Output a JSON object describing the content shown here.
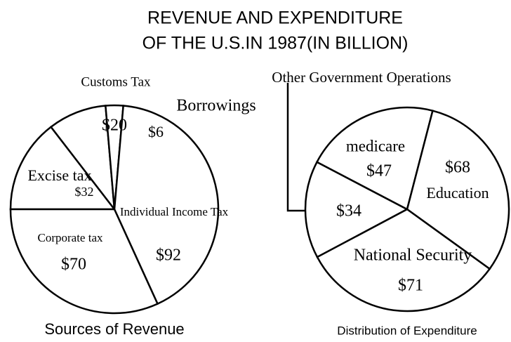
{
  "title": [
    "REVENUE AND EXPENDITURE",
    "OF THE U.S.IN 1987(IN BILLION)"
  ],
  "chart_data": [
    {
      "type": "pie",
      "title": "Sources of Revenue",
      "categories": [
        "Excise tax",
        "Customs Tax",
        "Borrowings",
        "Individual Income Tax",
        "Corporate tax"
      ],
      "values": [
        32,
        20,
        6,
        92,
        70
      ],
      "value_labels": [
        "$32",
        "$20",
        "$6",
        "$92",
        "$70"
      ],
      "color": "#ffffff"
    },
    {
      "type": "pie",
      "title": "Distribution of Expenditure",
      "categories": [
        "Other Government Operations",
        "medicare",
        "Education",
        "National Security"
      ],
      "values": [
        34,
        47,
        68,
        71
      ],
      "value_labels": [
        "$34",
        "$47",
        "$68",
        "$71"
      ],
      "color": "#ffffff"
    }
  ]
}
